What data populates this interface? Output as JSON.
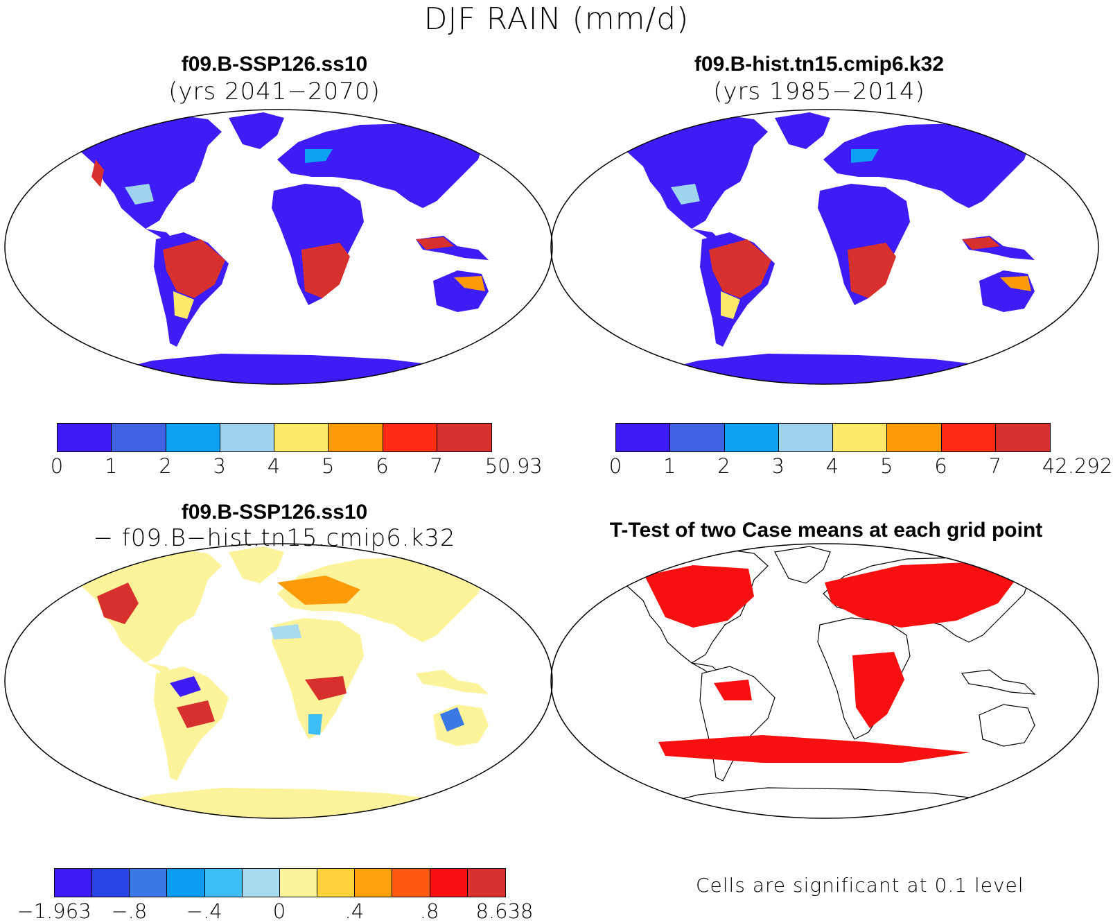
{
  "title": "DJF RAIN (mm/d)",
  "panels": {
    "p1": {
      "name": "f09.B-SSP126.ss10",
      "sub": "(yrs 2041−2070)"
    },
    "p2": {
      "name": "f09.B-hist.tn15.cmip6.k32",
      "sub": "(yrs 1985−2014)"
    },
    "p3": {
      "name": "f09.B-SSP126.ss10",
      "sub": "− f09.B−hist.tn15.cmip6.k32"
    },
    "p4": {
      "name": "T-Test of two Case means at each grid point",
      "note": "Cells are significant at 0.1 level"
    }
  },
  "colorbars": {
    "abs1": {
      "colors": [
        "#3d1cf5",
        "#3f63e0",
        "#0ea0f2",
        "#9fd4ef",
        "#fde968",
        "#fd9a0a",
        "#fd2a14",
        "#d8302c"
      ],
      "labels": [
        "0",
        "1",
        "2",
        "3",
        "4",
        "5",
        "6",
        "7",
        "50.93"
      ]
    },
    "abs2": {
      "colors": [
        "#3d1cf5",
        "#3f63e0",
        "#0ea0f2",
        "#9fd4ef",
        "#fde968",
        "#fd9a0a",
        "#fd2a14",
        "#d8302c"
      ],
      "labels": [
        "0",
        "1",
        "2",
        "3",
        "4",
        "5",
        "6",
        "7",
        "42.292"
      ]
    },
    "diff": {
      "colors": [
        "#3d1cf5",
        "#2a45e6",
        "#3a78e6",
        "#0b9bf0",
        "#3dbdf5",
        "#a8daf0",
        "#fdf39a",
        "#fdd23a",
        "#fda20e",
        "#fd5a12",
        "#f80f0f",
        "#d8302c"
      ],
      "labels": [
        "−1.963",
        "−.8",
        "−.4",
        "0",
        ".4",
        ".8",
        "8.638"
      ]
    }
  },
  "colors": {
    "blue": "#3d1cf5",
    "red": "#d8302c",
    "sig_red": "#f80f0f",
    "yellow": "#fdf39a"
  }
}
